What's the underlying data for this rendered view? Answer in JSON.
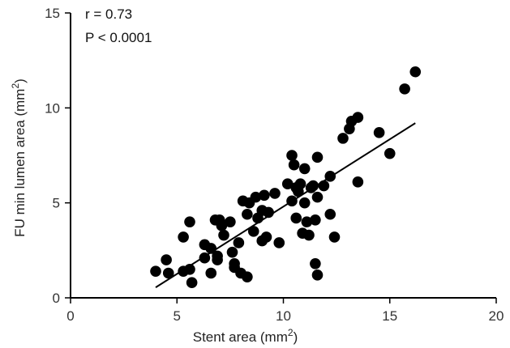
{
  "chart_data": {
    "type": "scatter",
    "xlabel": "Stent area (mm",
    "xlabel_sup": "2",
    "xlabel_end": ")",
    "ylabel": "FU min lumen area (mm",
    "ylabel_sup": "2",
    "ylabel_end": ")",
    "xlim": [
      0,
      20
    ],
    "ylim": [
      0,
      15
    ],
    "xticks": [
      0,
      5,
      10,
      15,
      20
    ],
    "yticks": [
      0,
      5,
      10,
      15
    ],
    "annotations": [
      "r = 0.73",
      "P < 0.0001"
    ],
    "trendline": {
      "x": [
        4.0,
        16.2
      ],
      "y": [
        0.55,
        9.2
      ]
    },
    "points": [
      {
        "x": 4.0,
        "y": 1.4
      },
      {
        "x": 4.5,
        "y": 2.0
      },
      {
        "x": 4.6,
        "y": 1.3
      },
      {
        "x": 5.3,
        "y": 1.4
      },
      {
        "x": 5.3,
        "y": 3.2
      },
      {
        "x": 5.6,
        "y": 4.0
      },
      {
        "x": 5.6,
        "y": 1.5
      },
      {
        "x": 5.7,
        "y": 0.8
      },
      {
        "x": 6.3,
        "y": 2.8
      },
      {
        "x": 6.3,
        "y": 2.1
      },
      {
        "x": 6.6,
        "y": 1.3
      },
      {
        "x": 6.6,
        "y": 2.6
      },
      {
        "x": 6.8,
        "y": 4.1
      },
      {
        "x": 6.9,
        "y": 2.2
      },
      {
        "x": 6.9,
        "y": 2.0
      },
      {
        "x": 7.0,
        "y": 4.1
      },
      {
        "x": 7.1,
        "y": 3.8
      },
      {
        "x": 7.2,
        "y": 3.3
      },
      {
        "x": 7.5,
        "y": 4.0
      },
      {
        "x": 7.6,
        "y": 2.4
      },
      {
        "x": 7.7,
        "y": 1.8
      },
      {
        "x": 7.7,
        "y": 1.6
      },
      {
        "x": 7.9,
        "y": 2.9
      },
      {
        "x": 8.0,
        "y": 1.3
      },
      {
        "x": 8.1,
        "y": 5.1
      },
      {
        "x": 8.3,
        "y": 1.1
      },
      {
        "x": 8.3,
        "y": 4.4
      },
      {
        "x": 8.4,
        "y": 5.0
      },
      {
        "x": 8.6,
        "y": 3.5
      },
      {
        "x": 8.7,
        "y": 5.3
      },
      {
        "x": 8.8,
        "y": 4.2
      },
      {
        "x": 9.0,
        "y": 4.6
      },
      {
        "x": 9.0,
        "y": 3.0
      },
      {
        "x": 9.1,
        "y": 5.4
      },
      {
        "x": 9.2,
        "y": 3.2
      },
      {
        "x": 9.3,
        "y": 4.5
      },
      {
        "x": 9.6,
        "y": 5.5
      },
      {
        "x": 9.8,
        "y": 2.9
      },
      {
        "x": 10.2,
        "y": 6.0
      },
      {
        "x": 10.4,
        "y": 7.5
      },
      {
        "x": 10.4,
        "y": 5.1
      },
      {
        "x": 10.5,
        "y": 7.0
      },
      {
        "x": 10.6,
        "y": 5.8
      },
      {
        "x": 10.6,
        "y": 4.2
      },
      {
        "x": 10.7,
        "y": 5.6
      },
      {
        "x": 10.8,
        "y": 6.0
      },
      {
        "x": 10.9,
        "y": 3.4
      },
      {
        "x": 11.0,
        "y": 5.0
      },
      {
        "x": 11.0,
        "y": 6.8
      },
      {
        "x": 11.1,
        "y": 4.0
      },
      {
        "x": 11.2,
        "y": 3.3
      },
      {
        "x": 11.3,
        "y": 5.8
      },
      {
        "x": 11.4,
        "y": 5.9
      },
      {
        "x": 11.5,
        "y": 4.1
      },
      {
        "x": 11.5,
        "y": 1.8
      },
      {
        "x": 11.6,
        "y": 1.2
      },
      {
        "x": 11.6,
        "y": 7.4
      },
      {
        "x": 11.6,
        "y": 5.3
      },
      {
        "x": 11.9,
        "y": 5.9
      },
      {
        "x": 12.2,
        "y": 6.4
      },
      {
        "x": 12.2,
        "y": 4.4
      },
      {
        "x": 12.4,
        "y": 3.2
      },
      {
        "x": 12.8,
        "y": 8.4
      },
      {
        "x": 13.1,
        "y": 8.9
      },
      {
        "x": 13.2,
        "y": 9.3
      },
      {
        "x": 13.5,
        "y": 9.5
      },
      {
        "x": 13.5,
        "y": 6.1
      },
      {
        "x": 14.5,
        "y": 8.7
      },
      {
        "x": 15.0,
        "y": 7.6
      },
      {
        "x": 15.7,
        "y": 11.0
      },
      {
        "x": 16.2,
        "y": 11.9
      }
    ]
  }
}
